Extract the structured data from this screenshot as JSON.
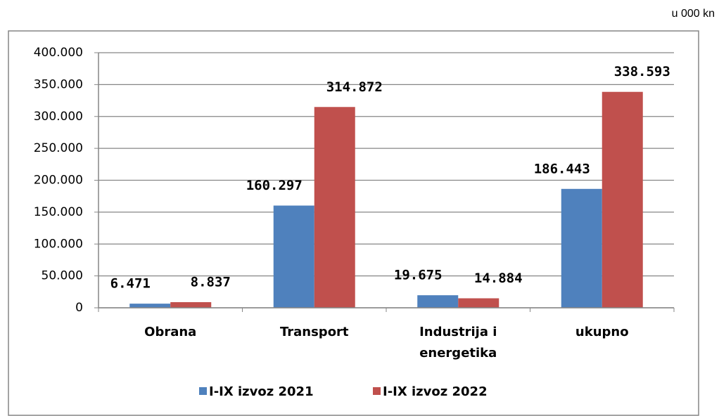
{
  "chart_data": {
    "type": "bar",
    "annotation": "u 000 kn",
    "categories": [
      "Obrana",
      "Transport",
      "Industrija i energetika",
      "ukupno"
    ],
    "series": [
      {
        "name": "I-IX izvoz 2021",
        "color": "#4f81bd",
        "values": [
          6471,
          160297,
          19675,
          186443
        ],
        "value_labels": [
          "6.471",
          "160.297",
          "19.675",
          "186.443"
        ]
      },
      {
        "name": "I-IX izvoz 2022",
        "color": "#c0504d",
        "values": [
          8837,
          314872,
          14884,
          338593
        ],
        "value_labels": [
          "8.837",
          "314.872",
          "14.884",
          "338.593"
        ]
      }
    ],
    "ylim": [
      0,
      400000
    ],
    "yticks": [
      0,
      {
        "value": 50000,
        "label": "50.000"
      },
      {
        "value": 100000,
        "label": "100.000"
      },
      {
        "value": 150000,
        "label": "150.000"
      },
      {
        "value": 200000,
        "label": "200.000"
      },
      {
        "value": 250000,
        "label": "250.000"
      },
      {
        "value": 300000,
        "label": "300.000"
      },
      {
        "value": 350000,
        "label": "350.000"
      },
      {
        "value": 400000,
        "label": "400.000"
      }
    ],
    "grid": true,
    "legend": "bottom"
  }
}
